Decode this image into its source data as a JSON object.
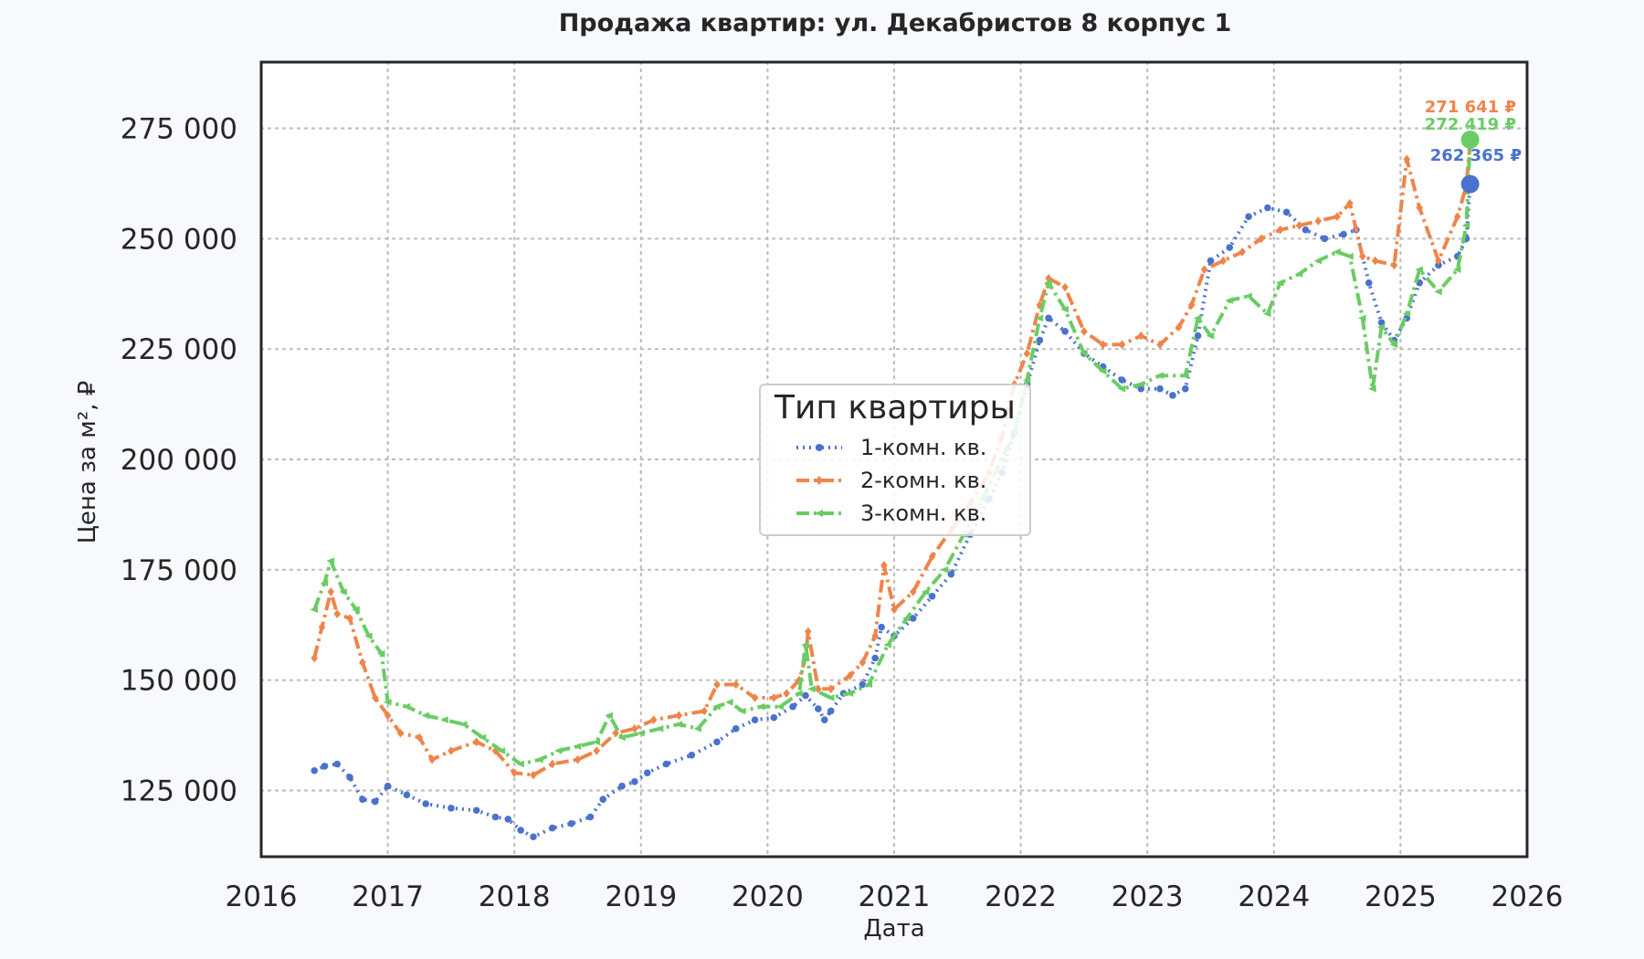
{
  "chart_data": {
    "type": "line",
    "title": "Продажа квартир: ул. Декабристов 8 корпус 1",
    "xlabel": "Дата",
    "ylabel": "Цена за м², ₽",
    "x_ticks": [
      "2016",
      "2017",
      "2018",
      "2019",
      "2020",
      "2021",
      "2022",
      "2023",
      "2024",
      "2025",
      "2026"
    ],
    "y_ticks": [
      "125 000",
      "150 000",
      "175 000",
      "200 000",
      "225 000",
      "250 000",
      "275 000"
    ],
    "xlim": [
      2016.0,
      2026.0
    ],
    "ylim": [
      110000,
      290000
    ],
    "grid": true,
    "legend": {
      "title": "Тип квартиры",
      "placement": "center"
    },
    "series": [
      {
        "name": "1-комн. кв.",
        "color": "#4a72cc",
        "style": "dotted",
        "marker": "circle",
        "last_value_label": "262 365 ₽",
        "last_point": [
          2025.55,
          262365
        ],
        "points": [
          [
            2016.42,
            129500
          ],
          [
            2016.5,
            130500
          ],
          [
            2016.6,
            131000
          ],
          [
            2016.7,
            128000
          ],
          [
            2016.8,
            123000
          ],
          [
            2016.9,
            122500
          ],
          [
            2017.0,
            126000
          ],
          [
            2017.15,
            124000
          ],
          [
            2017.3,
            122000
          ],
          [
            2017.5,
            121000
          ],
          [
            2017.7,
            120500
          ],
          [
            2017.85,
            119000
          ],
          [
            2017.95,
            118500
          ],
          [
            2018.05,
            116000
          ],
          [
            2018.15,
            114500
          ],
          [
            2018.3,
            116500
          ],
          [
            2018.45,
            117500
          ],
          [
            2018.6,
            119000
          ],
          [
            2018.7,
            123000
          ],
          [
            2018.85,
            126000
          ],
          [
            2018.95,
            127000
          ],
          [
            2019.05,
            129000
          ],
          [
            2019.2,
            131000
          ],
          [
            2019.4,
            133000
          ],
          [
            2019.6,
            136000
          ],
          [
            2019.75,
            139000
          ],
          [
            2019.9,
            141000
          ],
          [
            2020.05,
            141500
          ],
          [
            2020.2,
            144000
          ],
          [
            2020.3,
            146500
          ],
          [
            2020.4,
            143500
          ],
          [
            2020.45,
            141000
          ],
          [
            2020.5,
            143000
          ],
          [
            2020.6,
            147000
          ],
          [
            2020.75,
            149000
          ],
          [
            2020.85,
            155000
          ],
          [
            2020.9,
            162000
          ],
          [
            2021.0,
            160000
          ],
          [
            2021.15,
            164000
          ],
          [
            2021.3,
            169000
          ],
          [
            2021.45,
            174000
          ],
          [
            2021.6,
            183000
          ],
          [
            2021.75,
            191000
          ],
          [
            2021.85,
            197000
          ],
          [
            2021.95,
            206000
          ],
          [
            2022.05,
            217000
          ],
          [
            2022.15,
            227000
          ],
          [
            2022.22,
            232000
          ],
          [
            2022.35,
            229000
          ],
          [
            2022.5,
            224000
          ],
          [
            2022.65,
            221000
          ],
          [
            2022.8,
            218000
          ],
          [
            2022.95,
            216000
          ],
          [
            2023.1,
            216000
          ],
          [
            2023.2,
            214500
          ],
          [
            2023.3,
            216000
          ],
          [
            2023.4,
            228000
          ],
          [
            2023.5,
            245000
          ],
          [
            2023.65,
            248000
          ],
          [
            2023.8,
            255000
          ],
          [
            2023.95,
            257000
          ],
          [
            2024.1,
            256000
          ],
          [
            2024.25,
            252000
          ],
          [
            2024.4,
            250000
          ],
          [
            2024.55,
            251000
          ],
          [
            2024.65,
            252000
          ],
          [
            2024.75,
            240000
          ],
          [
            2024.85,
            231000
          ],
          [
            2024.95,
            227000
          ],
          [
            2025.05,
            232000
          ],
          [
            2025.15,
            240000
          ],
          [
            2025.3,
            244000
          ],
          [
            2025.45,
            246000
          ],
          [
            2025.52,
            250000
          ],
          [
            2025.55,
            262365
          ]
        ]
      },
      {
        "name": "2-комн. кв.",
        "color": "#ee854a",
        "style": "dashdot",
        "marker": "diamond",
        "last_value_label": "271 641 ₽",
        "last_point": [
          2025.55,
          271641
        ],
        "points": [
          [
            2016.42,
            155000
          ],
          [
            2016.48,
            162000
          ],
          [
            2016.55,
            170000
          ],
          [
            2016.6,
            165000
          ],
          [
            2016.7,
            164000
          ],
          [
            2016.8,
            154000
          ],
          [
            2016.9,
            146000
          ],
          [
            2017.0,
            142000
          ],
          [
            2017.1,
            138000
          ],
          [
            2017.25,
            137000
          ],
          [
            2017.35,
            132000
          ],
          [
            2017.5,
            134000
          ],
          [
            2017.7,
            136000
          ],
          [
            2017.85,
            134000
          ],
          [
            2018.0,
            129000
          ],
          [
            2018.15,
            128500
          ],
          [
            2018.3,
            131000
          ],
          [
            2018.5,
            132000
          ],
          [
            2018.65,
            134000
          ],
          [
            2018.8,
            138000
          ],
          [
            2018.95,
            139000
          ],
          [
            2019.1,
            141000
          ],
          [
            2019.3,
            142000
          ],
          [
            2019.5,
            143000
          ],
          [
            2019.6,
            149000
          ],
          [
            2019.75,
            149000
          ],
          [
            2019.9,
            146000
          ],
          [
            2020.05,
            146000
          ],
          [
            2020.15,
            147000
          ],
          [
            2020.25,
            150000
          ],
          [
            2020.3,
            155000
          ],
          [
            2020.32,
            161000
          ],
          [
            2020.4,
            148000
          ],
          [
            2020.5,
            148000
          ],
          [
            2020.65,
            151000
          ],
          [
            2020.75,
            154000
          ],
          [
            2020.85,
            160000
          ],
          [
            2020.92,
            176000
          ],
          [
            2021.0,
            166000
          ],
          [
            2021.15,
            170000
          ],
          [
            2021.3,
            178000
          ],
          [
            2021.45,
            184000
          ],
          [
            2021.6,
            190000
          ],
          [
            2021.75,
            197000
          ],
          [
            2021.85,
            205000
          ],
          [
            2021.95,
            217000
          ],
          [
            2022.05,
            224000
          ],
          [
            2022.15,
            235000
          ],
          [
            2022.22,
            241000
          ],
          [
            2022.35,
            239000
          ],
          [
            2022.5,
            229000
          ],
          [
            2022.65,
            226000
          ],
          [
            2022.8,
            226000
          ],
          [
            2022.95,
            228000
          ],
          [
            2023.1,
            226000
          ],
          [
            2023.25,
            230000
          ],
          [
            2023.35,
            235000
          ],
          [
            2023.45,
            243000
          ],
          [
            2023.6,
            245000
          ],
          [
            2023.75,
            247000
          ],
          [
            2023.9,
            250000
          ],
          [
            2024.05,
            252000
          ],
          [
            2024.2,
            253000
          ],
          [
            2024.35,
            254000
          ],
          [
            2024.5,
            255000
          ],
          [
            2024.6,
            258000
          ],
          [
            2024.7,
            246000
          ],
          [
            2024.8,
            245000
          ],
          [
            2024.95,
            244000
          ],
          [
            2025.05,
            268000
          ],
          [
            2025.15,
            257000
          ],
          [
            2025.3,
            245000
          ],
          [
            2025.45,
            255000
          ],
          [
            2025.52,
            262000
          ],
          [
            2025.55,
            271641
          ]
        ]
      },
      {
        "name": "3-комн. кв.",
        "color": "#6acc64",
        "style": "dashdot",
        "marker": "triangle-left",
        "last_value_label": "272 419 ₽",
        "last_point": [
          2025.55,
          272419
        ],
        "points": [
          [
            2016.42,
            166000
          ],
          [
            2016.5,
            172000
          ],
          [
            2016.55,
            177000
          ],
          [
            2016.65,
            170000
          ],
          [
            2016.75,
            166000
          ],
          [
            2016.85,
            160000
          ],
          [
            2016.95,
            156000
          ],
          [
            2017.0,
            145000
          ],
          [
            2017.15,
            144000
          ],
          [
            2017.3,
            142000
          ],
          [
            2017.45,
            141000
          ],
          [
            2017.6,
            140000
          ],
          [
            2017.75,
            137000
          ],
          [
            2017.9,
            134000
          ],
          [
            2018.05,
            131000
          ],
          [
            2018.2,
            132000
          ],
          [
            2018.35,
            134000
          ],
          [
            2018.5,
            135000
          ],
          [
            2018.65,
            136000
          ],
          [
            2018.75,
            142000
          ],
          [
            2018.85,
            137000
          ],
          [
            2019.0,
            138000
          ],
          [
            2019.15,
            139000
          ],
          [
            2019.3,
            140000
          ],
          [
            2019.45,
            139000
          ],
          [
            2019.6,
            144000
          ],
          [
            2019.7,
            145000
          ],
          [
            2019.8,
            143000
          ],
          [
            2019.95,
            144000
          ],
          [
            2020.1,
            144000
          ],
          [
            2020.25,
            147000
          ],
          [
            2020.3,
            158000
          ],
          [
            2020.35,
            148000
          ],
          [
            2020.5,
            146000
          ],
          [
            2020.65,
            147000
          ],
          [
            2020.8,
            149000
          ],
          [
            2020.95,
            158000
          ],
          [
            2021.1,
            164000
          ],
          [
            2021.25,
            170000
          ],
          [
            2021.4,
            175000
          ],
          [
            2021.55,
            183000
          ],
          [
            2021.7,
            191000
          ],
          [
            2021.85,
            200000
          ],
          [
            2021.95,
            206000
          ],
          [
            2022.05,
            218000
          ],
          [
            2022.15,
            232000
          ],
          [
            2022.22,
            240000
          ],
          [
            2022.35,
            234000
          ],
          [
            2022.5,
            224000
          ],
          [
            2022.65,
            220000
          ],
          [
            2022.8,
            216000
          ],
          [
            2022.95,
            217000
          ],
          [
            2023.1,
            219000
          ],
          [
            2023.3,
            219000
          ],
          [
            2023.4,
            232000
          ],
          [
            2023.5,
            228000
          ],
          [
            2023.65,
            236000
          ],
          [
            2023.8,
            237000
          ],
          [
            2023.95,
            233000
          ],
          [
            2024.05,
            240000
          ],
          [
            2024.2,
            242000
          ],
          [
            2024.35,
            245000
          ],
          [
            2024.5,
            247000
          ],
          [
            2024.6,
            246000
          ],
          [
            2024.7,
            232000
          ],
          [
            2024.78,
            216000
          ],
          [
            2024.85,
            230000
          ],
          [
            2024.95,
            226000
          ],
          [
            2025.05,
            233000
          ],
          [
            2025.15,
            243000
          ],
          [
            2025.3,
            238000
          ],
          [
            2025.45,
            243000
          ],
          [
            2025.52,
            253000
          ],
          [
            2025.55,
            272419
          ]
        ]
      }
    ]
  }
}
